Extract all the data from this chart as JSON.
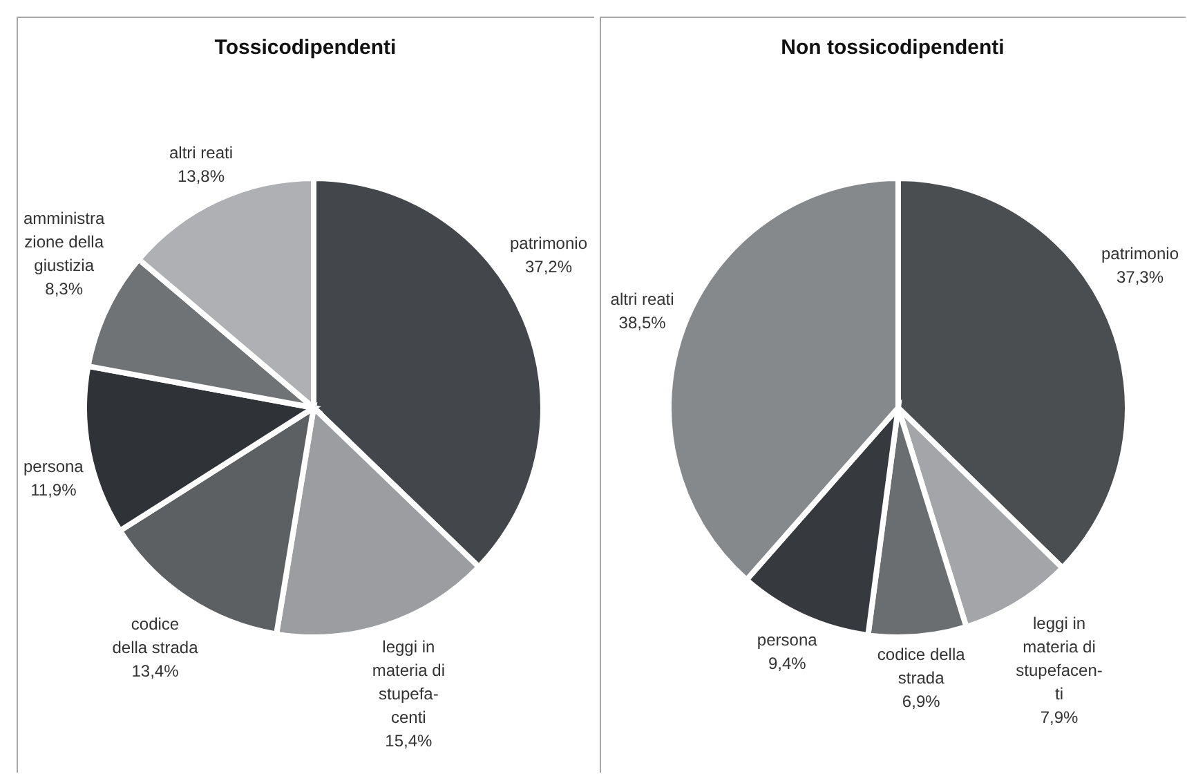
{
  "chart_data": [
    {
      "type": "pie",
      "title": "Tossicodipendenti",
      "categories": [
        "patrimonio",
        "leggi in\nmateria di\nstupefa-\ncenti",
        "codice\ndella strada",
        "persona",
        "amministra\nzione della\ngiustizia",
        "altri reati"
      ],
      "values": [
        37.2,
        15.4,
        13.4,
        11.9,
        8.3,
        13.8
      ],
      "value_labels": [
        "37,2%",
        "15,4%",
        "13,4%",
        "11,9%",
        "8,3%",
        "13,8%"
      ],
      "colors": [
        "#43464a",
        "#9b9da1",
        "#5d6063",
        "#2f3236",
        "#707376",
        "#aeb0b3"
      ]
    },
    {
      "type": "pie",
      "title": "Non tossicodipendenti",
      "categories": [
        "patrimonio",
        "leggi in\nmateria di\nstupefacen-\nti",
        "codice della\nstrada",
        "persona",
        "altri reati"
      ],
      "values": [
        37.3,
        7.9,
        6.9,
        9.4,
        38.5
      ],
      "value_labels": [
        "37,3%",
        "7,9%",
        "6,9%",
        "9,4%",
        "38,5%"
      ],
      "colors": [
        "#4b4e51",
        "#a3a5a8",
        "#6b6e71",
        "#36393d",
        "#86898c"
      ]
    }
  ]
}
